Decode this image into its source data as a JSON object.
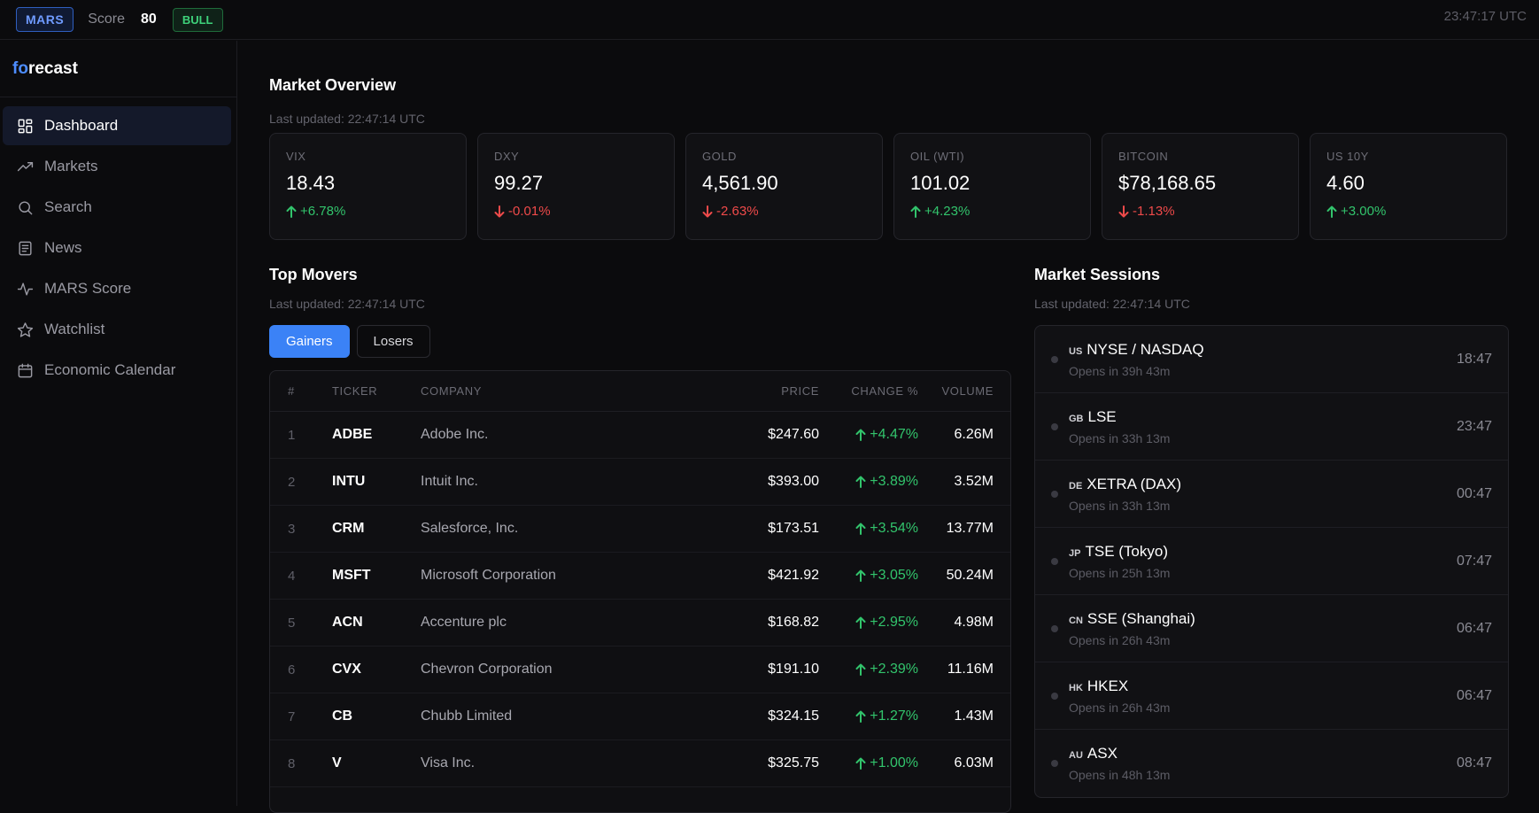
{
  "topbar": {
    "mars_badge": "MARS",
    "score_label": "Score",
    "score_value": "80",
    "regime": "BULL",
    "clock": "23:47:17 UTC"
  },
  "brand": {
    "prefix": "fo",
    "rest": "recast"
  },
  "sidebar": {
    "items": [
      {
        "label": "Dashboard",
        "icon": "dashboard-grid-icon"
      },
      {
        "label": "Markets",
        "icon": "trending-up-icon"
      },
      {
        "label": "Search",
        "icon": "search-icon"
      },
      {
        "label": "News",
        "icon": "newspaper-icon"
      },
      {
        "label": "MARS Score",
        "icon": "activity-pulse-icon"
      },
      {
        "label": "Watchlist",
        "icon": "star-icon"
      },
      {
        "label": "Economic Calendar",
        "icon": "calendar-icon"
      }
    ]
  },
  "overview": {
    "title": "Market Overview",
    "updated": "Last updated: 22:47:14 UTC",
    "cards": [
      {
        "label": "VIX",
        "value": "18.43",
        "change": "+6.78%",
        "dir": "up"
      },
      {
        "label": "DXY",
        "value": "99.27",
        "change": "-0.01%",
        "dir": "down"
      },
      {
        "label": "GOLD",
        "value": "4,561.90",
        "change": "-2.63%",
        "dir": "down"
      },
      {
        "label": "OIL (WTI)",
        "value": "101.02",
        "change": "+4.23%",
        "dir": "up"
      },
      {
        "label": "BITCOIN",
        "value": "$78,168.65",
        "change": "-1.13%",
        "dir": "down"
      },
      {
        "label": "US 10Y",
        "value": "4.60",
        "change": "+3.00%",
        "dir": "up"
      }
    ]
  },
  "movers": {
    "title": "Top Movers",
    "updated": "Last updated: 22:47:14 UTC",
    "tabs": {
      "gainers": "Gainers",
      "losers": "Losers"
    },
    "headers": {
      "num": "#",
      "ticker": "TICKER",
      "company": "COMPANY",
      "price": "PRICE",
      "change": "CHANGE %",
      "volume": "VOLUME"
    },
    "rows": [
      {
        "num": "1",
        "ticker": "ADBE",
        "company": "Adobe Inc.",
        "price": "$247.60",
        "change": "+4.47%",
        "volume": "6.26M"
      },
      {
        "num": "2",
        "ticker": "INTU",
        "company": "Intuit Inc.",
        "price": "$393.00",
        "change": "+3.89%",
        "volume": "3.52M"
      },
      {
        "num": "3",
        "ticker": "CRM",
        "company": "Salesforce, Inc.",
        "price": "$173.51",
        "change": "+3.54%",
        "volume": "13.77M"
      },
      {
        "num": "4",
        "ticker": "MSFT",
        "company": "Microsoft Corporation",
        "price": "$421.92",
        "change": "+3.05%",
        "volume": "50.24M"
      },
      {
        "num": "5",
        "ticker": "ACN",
        "company": "Accenture plc",
        "price": "$168.82",
        "change": "+2.95%",
        "volume": "4.98M"
      },
      {
        "num": "6",
        "ticker": "CVX",
        "company": "Chevron Corporation",
        "price": "$191.10",
        "change": "+2.39%",
        "volume": "11.16M"
      },
      {
        "num": "7",
        "ticker": "CB",
        "company": "Chubb Limited",
        "price": "$324.15",
        "change": "+1.27%",
        "volume": "1.43M"
      },
      {
        "num": "8",
        "ticker": "V",
        "company": "Visa Inc.",
        "price": "$325.75",
        "change": "+1.00%",
        "volume": "6.03M"
      }
    ]
  },
  "sessions": {
    "title": "Market Sessions",
    "updated": "Last updated: 22:47:14 UTC",
    "items": [
      {
        "cc": "US",
        "name": "NYSE / NASDAQ",
        "status": "Opens in 39h 43m",
        "time": "18:47"
      },
      {
        "cc": "GB",
        "name": "LSE",
        "status": "Opens in 33h 13m",
        "time": "23:47"
      },
      {
        "cc": "DE",
        "name": "XETRA (DAX)",
        "status": "Opens in 33h 13m",
        "time": "00:47"
      },
      {
        "cc": "JP",
        "name": "TSE (Tokyo)",
        "status": "Opens in 25h 13m",
        "time": "07:47"
      },
      {
        "cc": "CN",
        "name": "SSE (Shanghai)",
        "status": "Opens in 26h 43m",
        "time": "06:47"
      },
      {
        "cc": "HK",
        "name": "HKEX",
        "status": "Opens in 26h 43m",
        "time": "06:47"
      },
      {
        "cc": "AU",
        "name": "ASX",
        "status": "Opens in 48h 13m",
        "time": "08:47"
      }
    ]
  }
}
